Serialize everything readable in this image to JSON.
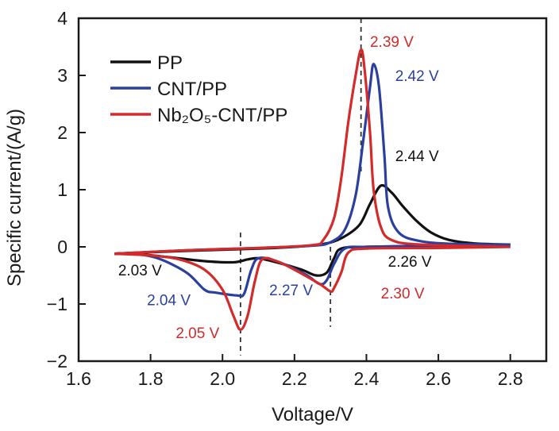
{
  "chart_data": {
    "type": "line",
    "title": "",
    "xlabel": "Voltage/V",
    "ylabel": "Specific current/(A/g)",
    "xlim": [
      1.6,
      2.9
    ],
    "ylim": [
      -2,
      4
    ],
    "xticks": [
      1.6,
      1.8,
      2.0,
      2.2,
      2.4,
      2.6,
      2.8
    ],
    "xtick_labels": [
      "1.6",
      "1.8",
      "2.0",
      "2.2",
      "2.4",
      "2.6",
      "2.8"
    ],
    "yticks": [
      -2,
      -1,
      0,
      1,
      2,
      3,
      4
    ],
    "ytick_labels": [
      "−2",
      "−1",
      "0",
      "1",
      "2",
      "3",
      "4"
    ],
    "grid": false,
    "legend_position": "top-left",
    "series": [
      {
        "name": "PP",
        "color": "#111111",
        "anodic": [
          [
            1.7,
            -0.12
          ],
          [
            1.9,
            -0.07
          ],
          [
            2.1,
            -0.03
          ],
          [
            2.2,
            0.0
          ],
          [
            2.28,
            0.05
          ],
          [
            2.33,
            0.15
          ],
          [
            2.38,
            0.38
          ],
          [
            2.41,
            0.75
          ],
          [
            2.44,
            1.07
          ],
          [
            2.47,
            0.95
          ],
          [
            2.5,
            0.72
          ],
          [
            2.54,
            0.45
          ],
          [
            2.58,
            0.25
          ],
          [
            2.63,
            0.12
          ],
          [
            2.7,
            0.06
          ],
          [
            2.8,
            0.04
          ]
        ],
        "cathodic": [
          [
            2.8,
            0.04
          ],
          [
            2.6,
            0.02
          ],
          [
            2.4,
            0.0
          ],
          [
            2.33,
            -0.03
          ],
          [
            2.31,
            -0.2
          ],
          [
            2.29,
            -0.45
          ],
          [
            2.26,
            -0.5
          ],
          [
            2.22,
            -0.4
          ],
          [
            2.15,
            -0.27
          ],
          [
            2.1,
            -0.2
          ],
          [
            2.07,
            -0.22
          ],
          [
            2.03,
            -0.27
          ],
          [
            1.95,
            -0.25
          ],
          [
            1.85,
            -0.18
          ],
          [
            1.75,
            -0.12
          ],
          [
            1.7,
            -0.12
          ]
        ]
      },
      {
        "name": "CNT/PP",
        "color": "#2b3f9e",
        "anodic": [
          [
            1.7,
            -0.12
          ],
          [
            1.9,
            -0.06
          ],
          [
            2.1,
            -0.02
          ],
          [
            2.25,
            0.02
          ],
          [
            2.3,
            0.08
          ],
          [
            2.34,
            0.3
          ],
          [
            2.37,
            0.9
          ],
          [
            2.39,
            1.8
          ],
          [
            2.41,
            2.8
          ],
          [
            2.42,
            3.2
          ],
          [
            2.435,
            2.8
          ],
          [
            2.45,
            1.6
          ],
          [
            2.46,
            0.7
          ],
          [
            2.49,
            0.25
          ],
          [
            2.55,
            0.1
          ],
          [
            2.65,
            0.05
          ],
          [
            2.8,
            0.04
          ]
        ],
        "cathodic": [
          [
            2.8,
            0.04
          ],
          [
            2.6,
            0.02
          ],
          [
            2.4,
            0.0
          ],
          [
            2.34,
            -0.03
          ],
          [
            2.31,
            -0.3
          ],
          [
            2.29,
            -0.58
          ],
          [
            2.27,
            -0.65
          ],
          [
            2.23,
            -0.48
          ],
          [
            2.15,
            -0.25
          ],
          [
            2.1,
            -0.2
          ],
          [
            2.08,
            -0.4
          ],
          [
            2.06,
            -0.82
          ],
          [
            2.04,
            -0.85
          ],
          [
            1.98,
            -0.8
          ],
          [
            1.95,
            -0.75
          ],
          [
            1.9,
            -0.45
          ],
          [
            1.82,
            -0.2
          ],
          [
            1.75,
            -0.12
          ],
          [
            1.7,
            -0.12
          ]
        ]
      },
      {
        "name": "Nb₂O₅-CNT/PP",
        "color": "#d42a2a",
        "anodic": [
          [
            1.7,
            -0.12
          ],
          [
            1.9,
            -0.06
          ],
          [
            2.1,
            -0.02
          ],
          [
            2.25,
            0.03
          ],
          [
            2.28,
            0.12
          ],
          [
            2.31,
            0.5
          ],
          [
            2.33,
            1.2
          ],
          [
            2.35,
            2.2
          ],
          [
            2.37,
            3.0
          ],
          [
            2.385,
            3.45
          ],
          [
            2.395,
            3.1
          ],
          [
            2.41,
            2.0
          ],
          [
            2.42,
            1.0
          ],
          [
            2.44,
            0.35
          ],
          [
            2.47,
            0.12
          ],
          [
            2.55,
            0.04
          ],
          [
            2.8,
            0.0
          ]
        ],
        "cathodic": [
          [
            2.8,
            0.0
          ],
          [
            2.6,
            -0.02
          ],
          [
            2.4,
            -0.03
          ],
          [
            2.35,
            -0.1
          ],
          [
            2.33,
            -0.45
          ],
          [
            2.31,
            -0.72
          ],
          [
            2.3,
            -0.78
          ],
          [
            2.27,
            -0.65
          ],
          [
            2.2,
            -0.4
          ],
          [
            2.15,
            -0.25
          ],
          [
            2.11,
            -0.22
          ],
          [
            2.09,
            -0.6
          ],
          [
            2.07,
            -1.2
          ],
          [
            2.05,
            -1.45
          ],
          [
            2.03,
            -1.2
          ],
          [
            2.0,
            -0.75
          ],
          [
            1.95,
            -0.4
          ],
          [
            1.88,
            -0.22
          ],
          [
            1.8,
            -0.15
          ],
          [
            1.7,
            -0.12
          ]
        ]
      }
    ],
    "reference_lines": [
      {
        "x": 2.05,
        "y_range": [
          -1.9,
          0.25
        ],
        "style": "dashed"
      },
      {
        "x": 2.3,
        "y_range": [
          -1.4,
          0.0
        ],
        "style": "dashed"
      },
      {
        "x": 2.385,
        "y_range": [
          1.3,
          4.0
        ],
        "style": "dashed"
      }
    ],
    "annotations": [
      {
        "text": "2.39 V",
        "color": "#d42a2a",
        "x": 2.41,
        "y": 3.5
      },
      {
        "text": "2.42 V",
        "color": "#2b3f9e",
        "x": 2.48,
        "y": 2.9
      },
      {
        "text": "2.44 V",
        "color": "#111111",
        "x": 2.48,
        "y": 1.5
      },
      {
        "text": "2.26 V",
        "color": "#111111",
        "x": 2.46,
        "y": -0.35
      },
      {
        "text": "2.30 V",
        "color": "#d42a2a",
        "x": 2.44,
        "y": -0.9
      },
      {
        "text": "2.27 V",
        "color": "#2b3f9e",
        "x": 2.13,
        "y": -0.85
      },
      {
        "text": "2.03 V",
        "color": "#111111",
        "x": 1.71,
        "y": -0.5
      },
      {
        "text": "2.04 V",
        "color": "#2b3f9e",
        "x": 1.79,
        "y": -1.02
      },
      {
        "text": "2.05 V",
        "color": "#d42a2a",
        "x": 1.87,
        "y": -1.6
      }
    ]
  }
}
